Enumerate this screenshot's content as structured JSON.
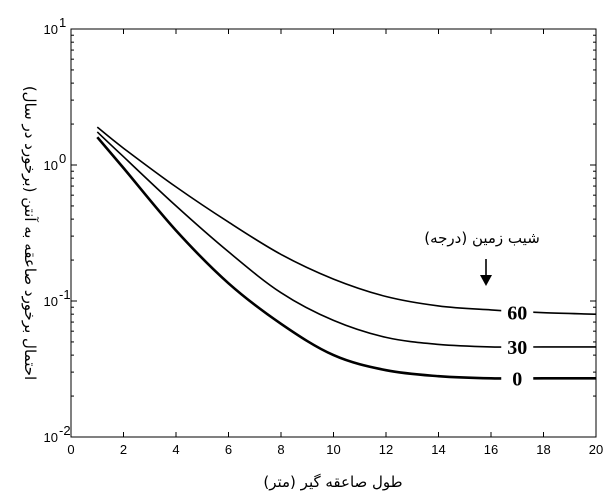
{
  "chart_data": {
    "type": "line",
    "xlabel": "طول صاعقه گیر (متر)",
    "ylabel": "احتمال برخورد صاعقه به آنتن (برخورد در سال)",
    "xlim": [
      0,
      20
    ],
    "ylim": [
      0.01,
      10
    ],
    "yscale": "log",
    "grid": false,
    "xticks": [
      0,
      2,
      4,
      6,
      8,
      10,
      12,
      14,
      16,
      18,
      20
    ],
    "yticks": [
      {
        "value": 0.01,
        "base": "10",
        "exp": "-2"
      },
      {
        "value": 0.1,
        "base": "10",
        "exp": "-1"
      },
      {
        "value": 1,
        "base": "10",
        "exp": "0"
      },
      {
        "value": 10,
        "base": "10",
        "exp": "1"
      }
    ],
    "legend_title": "شیب زمین (درجه)",
    "series": [
      {
        "name": "60",
        "x": [
          1,
          2,
          4,
          6,
          8,
          10,
          12,
          14,
          16,
          18,
          20
        ],
        "y": [
          1.9,
          1.33,
          0.69,
          0.38,
          0.22,
          0.145,
          0.108,
          0.092,
          0.086,
          0.082,
          0.08
        ]
      },
      {
        "name": "30",
        "x": [
          1,
          2,
          4,
          6,
          8,
          10,
          12,
          14,
          16,
          18,
          20
        ],
        "y": [
          1.75,
          1.15,
          0.5,
          0.23,
          0.115,
          0.072,
          0.054,
          0.048,
          0.046,
          0.046,
          0.046
        ]
      },
      {
        "name": "0",
        "x": [
          1,
          2,
          4,
          6,
          8,
          10,
          12,
          14,
          16,
          18,
          20
        ],
        "y": [
          1.6,
          0.95,
          0.33,
          0.135,
          0.068,
          0.04,
          0.031,
          0.028,
          0.027,
          0.027,
          0.027
        ]
      }
    ]
  }
}
